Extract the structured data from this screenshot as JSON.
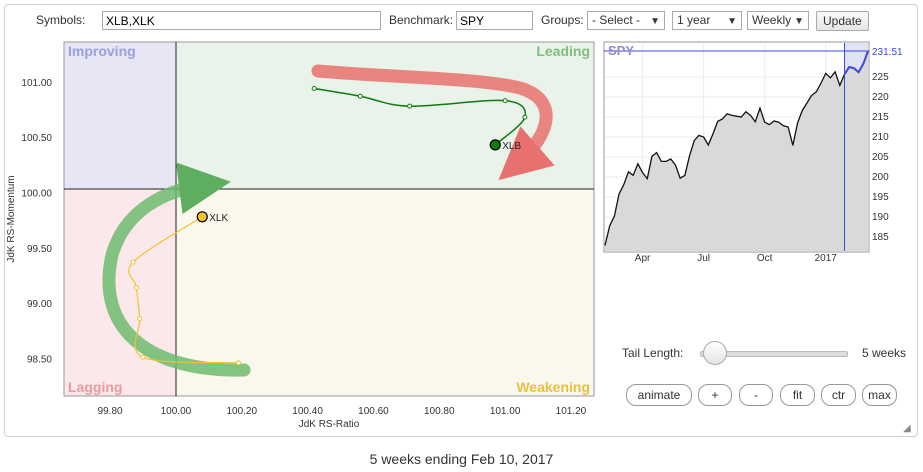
{
  "toolbar": {
    "symbols_label": "Symbols:",
    "symbols_value": "XLB,XLK",
    "benchmark_label": "Benchmark:",
    "benchmark_value": "SPY",
    "groups_label": "Groups:",
    "groups_value": "- Select -",
    "period_value": "1 year",
    "interval_value": "Weekly",
    "update_label": "Update"
  },
  "rrg": {
    "quadrants": {
      "improving": "Improving",
      "leading": "Leading",
      "lagging": "Lagging",
      "weakening": "Weakening"
    },
    "quadrant_colors": {
      "improving": "#e6e6f5",
      "leading": "#e9f3e9",
      "lagging": "#fae8ea",
      "weakening": "#faf7ec"
    },
    "xlabel": "JdK RS-Ratio",
    "ylabel": "JdK RS-Momentum",
    "x_ticks": [
      "99.80",
      "100.00",
      "100.20",
      "100.40",
      "100.60",
      "100.80",
      "101.00",
      "101.20"
    ],
    "y_ticks": [
      "101.00",
      "100.50",
      "100.00",
      "99.50",
      "99.00",
      "98.50"
    ]
  },
  "chart_data": [
    {
      "type": "scatter",
      "title": "",
      "xlabel": "JdK RS-Ratio",
      "ylabel": "JdK RS-Momentum",
      "xlim": [
        99.66,
        101.27
      ],
      "ylim": [
        98.17,
        101.37
      ],
      "center": [
        100.0,
        100.0
      ],
      "series": [
        {
          "name": "XLB",
          "color": "#107a10",
          "x": [
            100.42,
            100.56,
            100.71,
            101.0,
            101.06,
            100.97
          ],
          "y": [
            100.95,
            100.88,
            100.79,
            100.84,
            100.69,
            100.44
          ]
        },
        {
          "name": "XLK",
          "color": "#f2c230",
          "x": [
            100.19,
            99.9,
            99.89,
            99.88,
            99.87,
            100.08
          ],
          "y": [
            98.47,
            98.52,
            98.87,
            99.15,
            99.38,
            99.79
          ]
        }
      ]
    },
    {
      "type": "line",
      "title": "SPY",
      "last_value_label": "231.51",
      "x_tick_labels": [
        "Apr",
        "Jul",
        "Oct",
        "2017"
      ],
      "y_ticks": [
        185,
        190,
        195,
        200,
        205,
        210,
        215,
        220,
        225
      ],
      "ylim": [
        181.5,
        233.5
      ],
      "series": [
        {
          "name": "SPY",
          "values": [
            182.9,
            187.8,
            190.2,
            195.8,
            198.1,
            201.3,
            200.4,
            203.3,
            201.1,
            199.6,
            205.2,
            206.1,
            203.9,
            203.9,
            204.5,
            203.0,
            199.7,
            200.4,
            205.3,
            209.1,
            210.4,
            210.0,
            208.0,
            210.8,
            213.9,
            214.5,
            215.8,
            215.4,
            215.2,
            215.0,
            216.3,
            215.4,
            213.8,
            217.2,
            213.7,
            213.1,
            214.0,
            213.7,
            212.8,
            212.5,
            207.9,
            213.5,
            216.6,
            218.5,
            220.4,
            221.3,
            223.5,
            225.9,
            224.8,
            226.3,
            222.9,
            225.7,
            227.5,
            227.2,
            226.2,
            228.3,
            231.5
          ],
          "highlight_last": 5
        }
      ]
    }
  ],
  "controls": {
    "tail_length_label": "Tail Length:",
    "tail_length_value": "5 weeks",
    "tail_length_fraction": 0.1,
    "buttons": {
      "animate": "animate",
      "plus": "+",
      "minus": "-",
      "fit": "fit",
      "ctr": "ctr",
      "max": "max"
    }
  },
  "footer": {
    "caption": "5 weeks ending Feb 10, 2017"
  }
}
